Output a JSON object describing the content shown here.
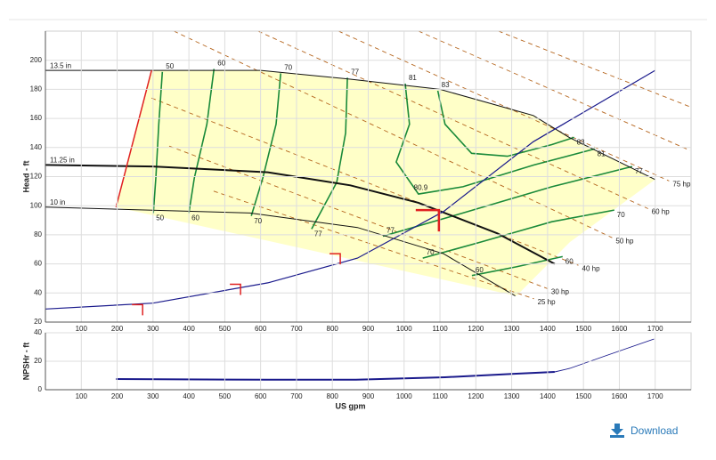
{
  "chart_data": [
    {
      "type": "line",
      "ylabel": "Head - ft",
      "xlim": [
        0,
        1800
      ],
      "ylim": [
        20,
        220
      ],
      "xticks": [
        100,
        200,
        300,
        400,
        500,
        600,
        700,
        800,
        900,
        1000,
        1100,
        1200,
        1300,
        1400,
        1500,
        1600,
        1700
      ],
      "yticks": [
        20,
        40,
        60,
        80,
        100,
        120,
        140,
        160,
        180,
        200
      ],
      "grid": true,
      "region": {
        "color": "#ffffc8",
        "x": [
          197,
          296,
          600,
          850,
          1100,
          1360,
          1460,
          1700,
          1462,
          1313
        ],
        "y": [
          99,
          193,
          193,
          187,
          180,
          162,
          147,
          118,
          75,
          38
        ]
      },
      "impeller_curves": [
        {
          "name": "13.5 in",
          "color": "#111111",
          "bold": false,
          "x": [
            0,
            296,
            600,
            850,
            1100,
            1360,
            1460,
            1700
          ],
          "y": [
            193,
            193,
            193,
            187,
            180,
            162,
            147,
            118
          ]
        },
        {
          "name": "11.25 in",
          "color": "#111111",
          "bold": true,
          "x": [
            0,
            300,
            620,
            850,
            1040,
            1260,
            1420
          ],
          "y": [
            128,
            127,
            123,
            114,
            102,
            81,
            60
          ]
        },
        {
          "name": "10 in",
          "color": "#111111",
          "bold": false,
          "x": [
            0,
            570,
            870,
            1110,
            1310
          ],
          "y": [
            99,
            95,
            85,
            67,
            38
          ]
        }
      ],
      "efficiency_curves": {
        "color": "#1a8a3a",
        "curves": [
          {
            "name": "50",
            "x": [
              326,
              316,
              308,
              301
            ],
            "y": [
              192,
              156,
              120,
              95
            ]
          },
          {
            "name": "60",
            "x": [
              470,
              450,
              415,
              400
            ],
            "y": [
              194,
              156,
              119,
              95
            ]
          },
          {
            "name": "70",
            "x": [
              656,
              643,
              606,
              574
            ],
            "y": [
              191,
              156,
              119,
              93
            ]
          },
          {
            "name": "77",
            "x": [
              842,
              837,
              812,
              742
            ],
            "y": [
              188,
              150,
              116,
              84
            ]
          },
          {
            "name": "81",
            "x": [
              1003,
              1015,
              978,
              1040,
              1164,
              1362,
              1531
            ],
            "y": [
              184,
              156,
              130,
              108,
              113,
              128,
              139
            ]
          },
          {
            "name": "83",
            "x": [
              1094,
              1114,
              1188,
              1288,
              1412,
              1474
            ],
            "y": [
              179,
              156,
              136,
              134,
              142,
              147
            ]
          },
          {
            "name": "77",
            "x": [
              941,
              1164,
              1412,
              1636
            ],
            "y": [
              79,
              95,
              113,
              127
            ]
          },
          {
            "name": "70",
            "x": [
              1052,
              1213,
              1412,
              1586
            ],
            "y": [
              64,
              75,
              89,
              97
            ]
          },
          {
            "name": "60",
            "x": [
              1189,
              1313,
              1442
            ],
            "y": [
              52,
              58,
              65
            ]
          }
        ]
      },
      "power_lines": {
        "color": "#b5651d",
        "lines": [
          {
            "name": "25 hp",
            "x": [
              469,
              1362
            ],
            "y": [
              110,
              36
            ]
          },
          {
            "name": "30 hp",
            "x": [
              345,
              1400
            ],
            "y": [
              141,
              43
            ]
          },
          {
            "name": "40 hp",
            "x": [
              296,
              1486
            ],
            "y": [
              174,
              59
            ]
          },
          {
            "name": "50 hp",
            "x": [
              358,
              1580
            ],
            "y": [
              220,
              78
            ]
          },
          {
            "name": "60 hp",
            "x": [
              593,
              1680
            ],
            "y": [
              220,
              98
            ]
          },
          {
            "name": "75 hp",
            "x": [
              817,
              1739
            ],
            "y": [
              220,
              117
            ]
          },
          {
            "x": [
              1040,
              1797
            ],
            "y": [
              220,
              138
            ]
          },
          {
            "x": [
              1263,
              1797
            ],
            "y": [
              220,
              168
            ]
          }
        ]
      },
      "boundary": {
        "color": "#e02020",
        "x": [
          197,
          296
        ],
        "y": [
          99,
          193
        ]
      },
      "system_curve": {
        "color": "#1a1a8c",
        "x": [
          0,
          300,
          620,
          870,
          1110,
          1360,
          1700
        ],
        "y": [
          29,
          33,
          47,
          64,
          96,
          144,
          193
        ]
      },
      "duty_points": {
        "color": "#e02020",
        "highlight": 3,
        "x": [
          271,
          544,
          822,
          1097
        ],
        "y": [
          32,
          46,
          67,
          97
        ]
      },
      "annotation": {
        "text": "80.9",
        "x": 1027,
        "y": 112
      }
    },
    {
      "type": "line",
      "ylabel": "NPSHr - ft",
      "xlabel": "US gpm",
      "xlim": [
        0,
        1800
      ],
      "ylim": [
        0,
        40
      ],
      "xticks": [
        100,
        200,
        300,
        400,
        500,
        600,
        700,
        800,
        900,
        1000,
        1100,
        1200,
        1300,
        1400,
        1500,
        1600,
        1700
      ],
      "yticks": [
        0,
        20,
        40
      ],
      "grid": true,
      "series": [
        {
          "color": "#1a1a8c",
          "bold": true,
          "x": [
            197,
            618,
            866,
            1114,
            1313,
            1420
          ],
          "values": [
            7.5,
            7,
            7,
            8.75,
            11.25,
            12.5
          ]
        },
        {
          "color": "#1a1a8c",
          "bold": false,
          "x": [
            1420,
            1462,
            1561,
            1697
          ],
          "values": [
            12.5,
            15,
            23.75,
            35.6
          ]
        }
      ]
    }
  ],
  "download_label": "Download"
}
